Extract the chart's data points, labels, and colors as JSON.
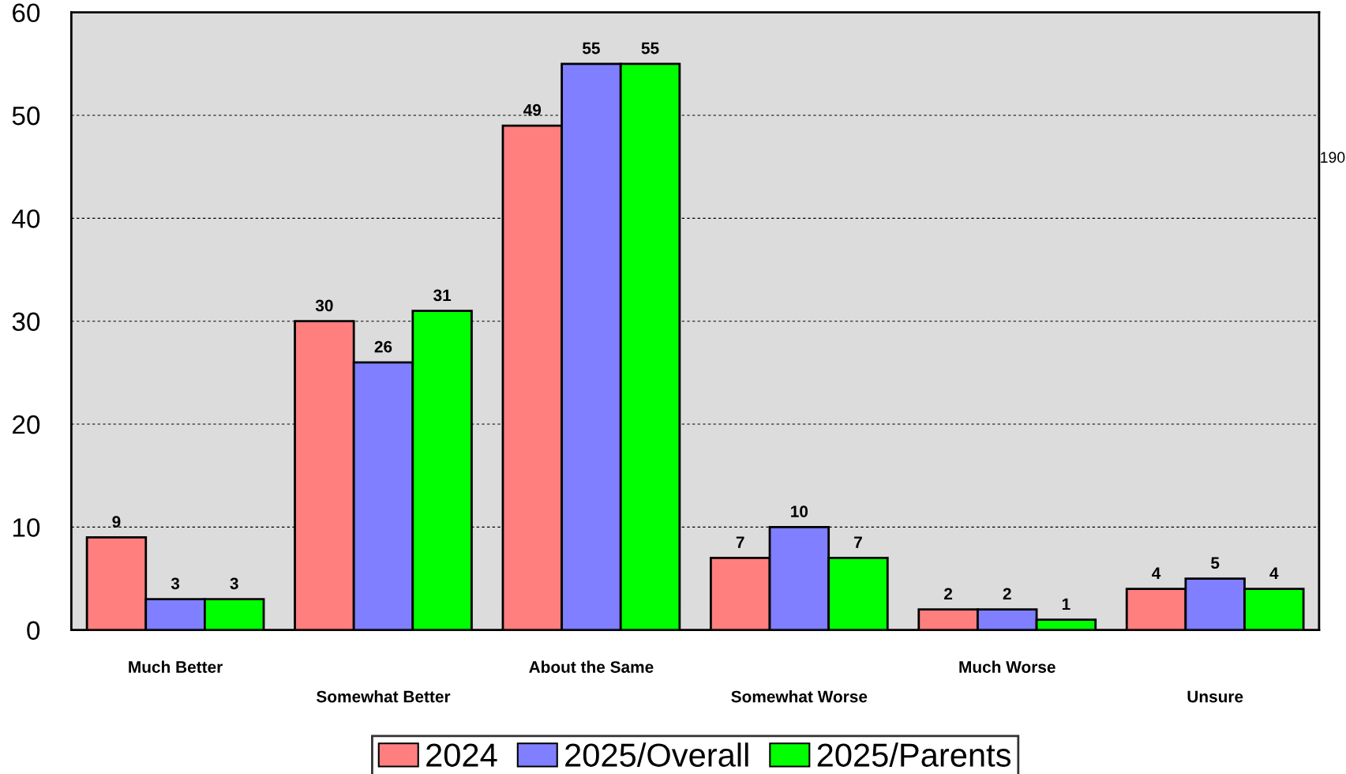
{
  "chart_data": {
    "type": "bar",
    "categories": [
      "Much Better",
      "Somewhat Better",
      "About the Same",
      "Somewhat Worse",
      "Much Worse",
      "Unsure"
    ],
    "series": [
      {
        "name": "2024",
        "color": "#ff7f7f",
        "values": [
          9,
          30,
          49,
          7,
          2,
          4
        ]
      },
      {
        "name": "2025/Overall",
        "color": "#7f7fff",
        "values": [
          3,
          26,
          55,
          10,
          2,
          5
        ]
      },
      {
        "name": "2025/Parents",
        "color": "#00ff00",
        "values": [
          3,
          31,
          55,
          7,
          1,
          4
        ]
      }
    ],
    "ylim": [
      0,
      60
    ],
    "yticks": [
      0,
      10,
      20,
      30,
      40,
      50,
      60
    ],
    "grid": "y",
    "data_labels": true,
    "legend": "bottom",
    "annotations": [
      "190"
    ]
  }
}
